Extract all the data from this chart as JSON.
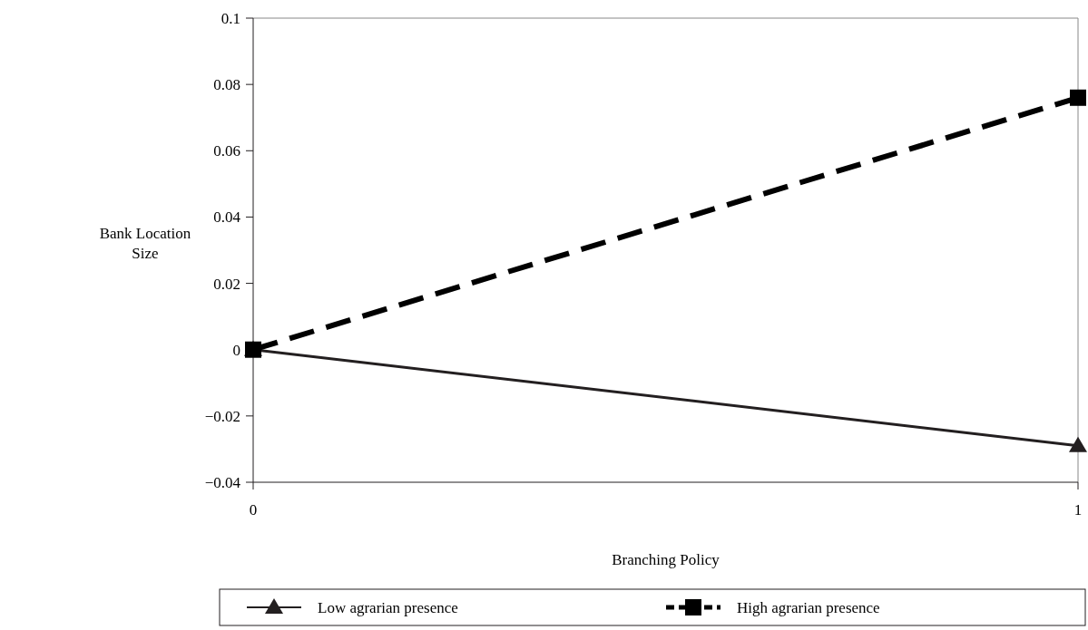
{
  "chart_data": {
    "type": "line",
    "xlabel": "Branching Policy",
    "ylabel": "Bank Location Size",
    "x": [
      0,
      1
    ],
    "xlim": [
      0,
      1
    ],
    "xticks": [
      0,
      1
    ],
    "ylim": [
      -0.04,
      0.1
    ],
    "yticks": [
      {
        "value": -0.04,
        "label": "−0.04"
      },
      {
        "value": -0.02,
        "label": "−0.02"
      },
      0,
      0.02,
      0.04,
      0.06,
      0.08,
      0.1
    ],
    "grid": false,
    "legend": "bottom",
    "series": [
      {
        "name": "Low agrarian presence",
        "color": "#231f20",
        "values": [
          0,
          -0.029
        ],
        "marker": "triangle",
        "line_style": "solid"
      },
      {
        "name": "High agrarian presence",
        "color": "#000000",
        "values": [
          0,
          0.076
        ],
        "marker": "square",
        "line_style": "dashed"
      }
    ]
  }
}
